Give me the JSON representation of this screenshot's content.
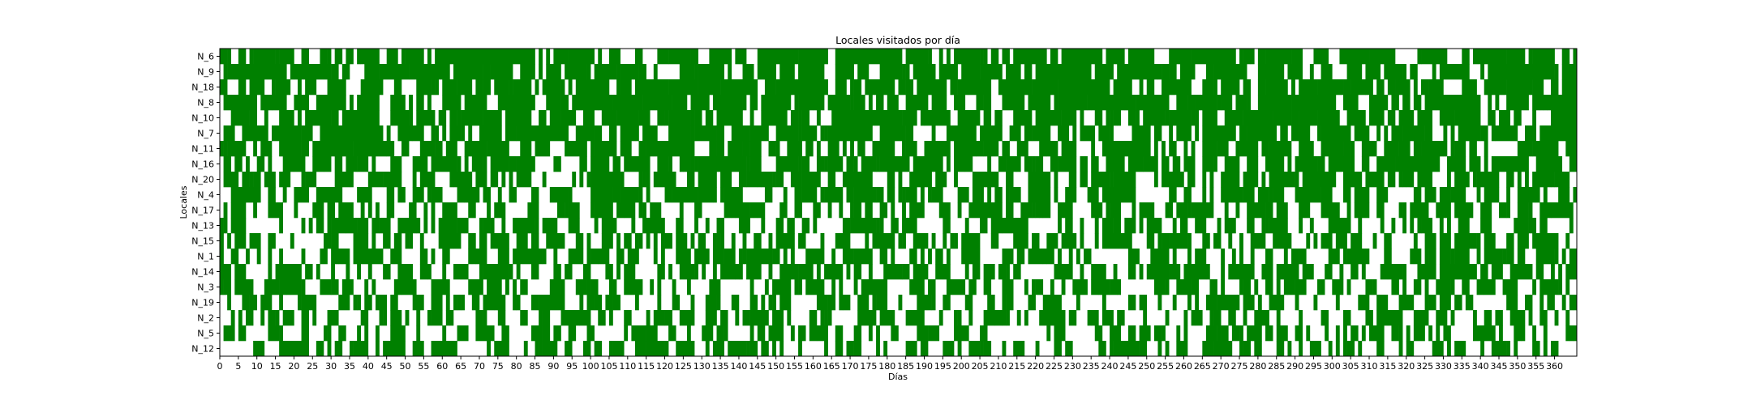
{
  "chart_data": {
    "type": "heatmap",
    "title": "Locales visitados por día",
    "xlabel": "Días",
    "ylabel": "Locales",
    "rows": [
      "N_6",
      "N_9",
      "N_18",
      "N_8",
      "N_10",
      "N_7",
      "N_11",
      "N_16",
      "N_20",
      "N_4",
      "N_17",
      "N_13",
      "N_15",
      "N_1",
      "N_14",
      "N_3",
      "N_19",
      "N_2",
      "N_5",
      "N_12"
    ],
    "days": 366,
    "xlim": [
      0,
      366
    ],
    "xticks": [
      0,
      5,
      10,
      15,
      20,
      25,
      30,
      35,
      40,
      45,
      50,
      55,
      60,
      65,
      70,
      75,
      80,
      85,
      90,
      95,
      100,
      105,
      110,
      115,
      120,
      125,
      130,
      135,
      140,
      145,
      150,
      155,
      160,
      165,
      170,
      175,
      180,
      185,
      190,
      195,
      200,
      205,
      210,
      215,
      220,
      225,
      230,
      235,
      240,
      245,
      250,
      255,
      260,
      265,
      270,
      275,
      280,
      285,
      290,
      295,
      300,
      305,
      310,
      315,
      320,
      325,
      330,
      335,
      340,
      345,
      350,
      355,
      360
    ],
    "visited_color": "#008000",
    "not_visited_color": "#ffffff",
    "visit_probability": [
      0.62,
      0.62,
      0.6,
      0.6,
      0.58,
      0.58,
      0.56,
      0.55,
      0.45,
      0.44,
      0.43,
      0.43,
      0.42,
      0.42,
      0.42,
      0.41,
      0.41,
      0.4,
      0.4,
      0.4
    ],
    "seed": 20240521
  }
}
